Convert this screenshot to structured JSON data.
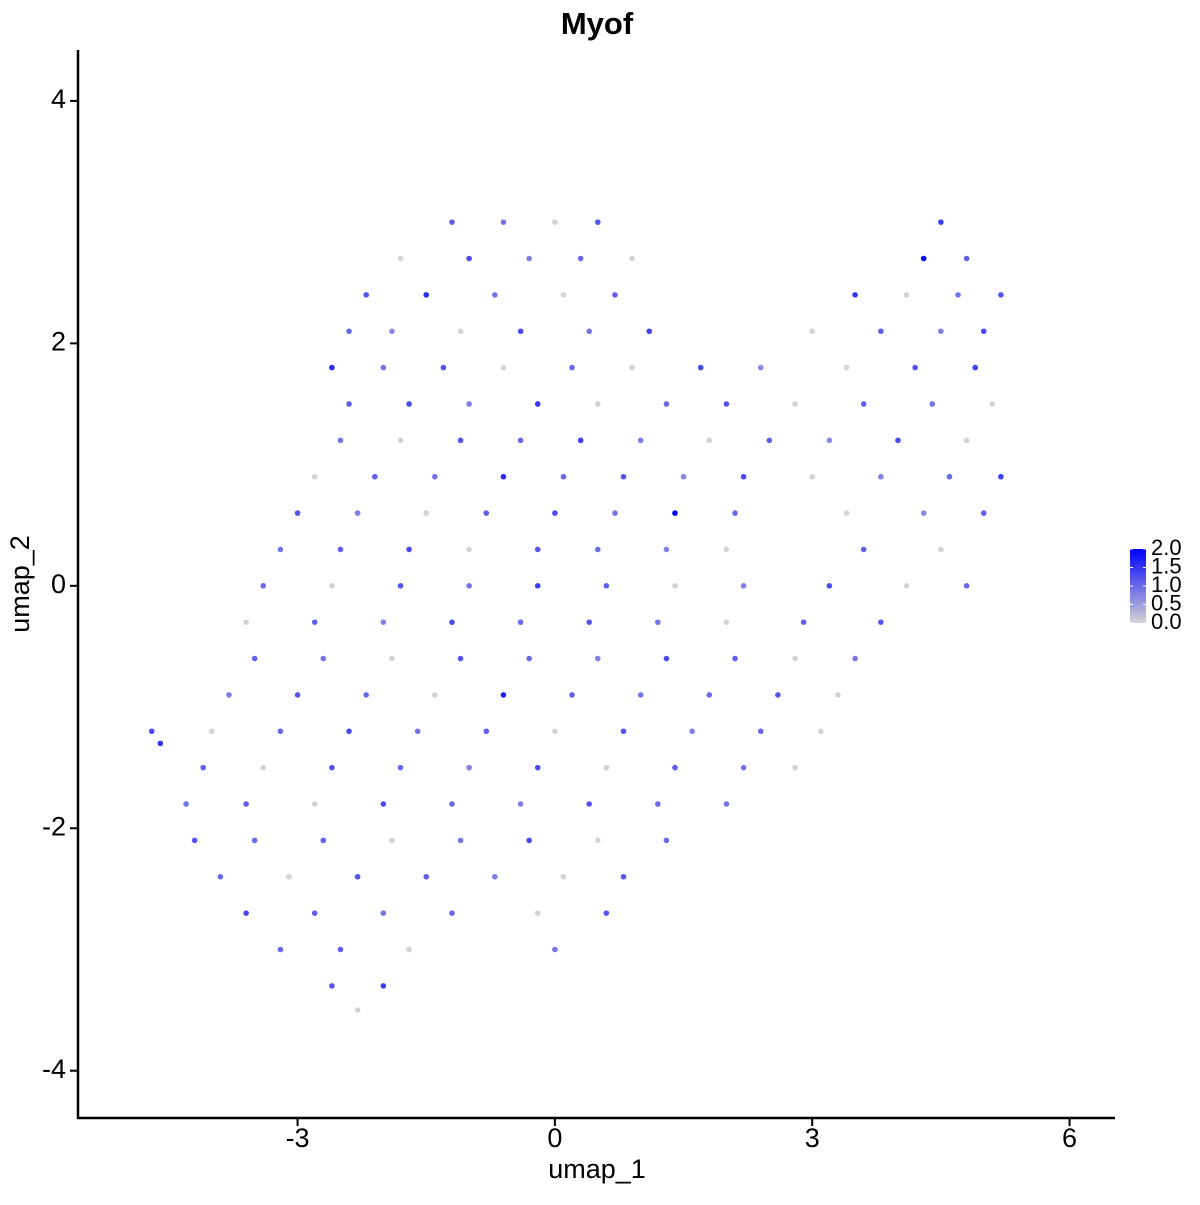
{
  "chart_data": {
    "type": "scatter",
    "title": "Myof",
    "x_label": "umap_1",
    "y_label": "umap_2",
    "xlim": [
      -5.56,
      6.53
    ],
    "ylim": [
      -4.39,
      4.42
    ],
    "xticks": [
      -3,
      0,
      3,
      6
    ],
    "yticks": [
      -4,
      -2,
      0,
      2,
      4
    ],
    "color_low": "#d3d3d3",
    "color_high": "#0000ff",
    "color_lim": [
      0,
      2
    ],
    "color_ticks": [
      {
        "value": 0,
        "label": "0.0"
      },
      {
        "value": 0.5,
        "label": "0.5"
      },
      {
        "value": 1,
        "label": "1.0"
      },
      {
        "value": 1.5,
        "label": "1.5"
      },
      {
        "value": 2,
        "label": "2.0"
      }
    ],
    "x": [
      -1.2,
      -0.6,
      0.0,
      0.5,
      4.5,
      -1.8,
      -1.0,
      -0.3,
      0.3,
      0.9,
      4.3,
      4.8,
      -2.2,
      -1.5,
      -0.7,
      0.1,
      0.7,
      3.5,
      4.1,
      4.7,
      5.2,
      -2.4,
      -1.9,
      -1.1,
      -0.4,
      0.4,
      1.1,
      3.0,
      3.8,
      4.5,
      5.0,
      -2.6,
      -2.0,
      -1.3,
      -0.6,
      0.2,
      0.9,
      1.7,
      2.4,
      3.4,
      4.2,
      4.9,
      -2.4,
      -1.7,
      -1.0,
      -0.2,
      0.5,
      1.3,
      2.0,
      2.8,
      3.6,
      4.4,
      5.1,
      -2.5,
      -1.8,
      -1.1,
      -0.4,
      0.3,
      1.0,
      1.8,
      2.5,
      3.2,
      4.0,
      4.8,
      -2.8,
      -2.1,
      -1.4,
      -0.6,
      0.1,
      0.8,
      1.5,
      2.2,
      3.0,
      3.8,
      4.6,
      5.2,
      -3.0,
      -2.3,
      -1.5,
      -0.8,
      0.0,
      0.7,
      1.4,
      2.1,
      3.4,
      4.3,
      5.0,
      -3.2,
      -2.5,
      -1.7,
      -1.0,
      -0.2,
      0.5,
      1.3,
      2.0,
      3.6,
      4.5,
      -3.4,
      -2.6,
      -1.8,
      -1.0,
      -0.2,
      0.6,
      1.4,
      2.2,
      3.2,
      4.1,
      4.8,
      -3.6,
      -2.8,
      -2.0,
      -1.2,
      -0.4,
      0.4,
      1.2,
      2.0,
      2.9,
      3.8,
      -3.5,
      -2.7,
      -1.9,
      -1.1,
      -0.3,
      0.5,
      1.3,
      2.1,
      2.8,
      3.5,
      -3.8,
      -3.0,
      -2.2,
      -1.4,
      -0.6,
      0.2,
      1.0,
      1.8,
      2.6,
      3.3,
      -4.0,
      -3.2,
      -2.4,
      -1.6,
      -0.8,
      0.0,
      0.8,
      1.6,
      2.4,
      3.1,
      -4.7,
      -4.6,
      -4.1,
      -3.4,
      -2.6,
      -1.8,
      -1.0,
      -0.2,
      0.6,
      1.4,
      2.2,
      2.8,
      -4.3,
      -3.6,
      -2.8,
      -2.0,
      -1.2,
      -0.4,
      0.4,
      1.2,
      2.0,
      -4.2,
      -3.5,
      -2.7,
      -1.9,
      -1.1,
      -0.3,
      0.5,
      1.3,
      -3.9,
      -3.1,
      -2.3,
      -1.5,
      -0.7,
      0.1,
      0.8,
      -3.6,
      -2.8,
      -2.0,
      -1.2,
      -0.2,
      0.6,
      -3.2,
      -2.5,
      -1.7,
      0.0,
      -2.6,
      -2.0,
      -2.3
    ],
    "y": [
      3.0,
      3.0,
      3.0,
      3.0,
      3.0,
      2.7,
      2.7,
      2.7,
      2.7,
      2.7,
      2.7,
      2.7,
      2.4,
      2.4,
      2.4,
      2.4,
      2.4,
      2.4,
      2.4,
      2.4,
      2.4,
      2.1,
      2.1,
      2.1,
      2.1,
      2.1,
      2.1,
      2.1,
      2.1,
      2.1,
      2.1,
      1.8,
      1.8,
      1.8,
      1.8,
      1.8,
      1.8,
      1.8,
      1.8,
      1.8,
      1.8,
      1.8,
      1.5,
      1.5,
      1.5,
      1.5,
      1.5,
      1.5,
      1.5,
      1.5,
      1.5,
      1.5,
      1.5,
      1.2,
      1.2,
      1.2,
      1.2,
      1.2,
      1.2,
      1.2,
      1.2,
      1.2,
      1.2,
      1.2,
      0.9,
      0.9,
      0.9,
      0.9,
      0.9,
      0.9,
      0.9,
      0.9,
      0.9,
      0.9,
      0.9,
      0.9,
      0.6,
      0.6,
      0.6,
      0.6,
      0.6,
      0.6,
      0.6,
      0.6,
      0.6,
      0.6,
      0.6,
      0.3,
      0.3,
      0.3,
      0.3,
      0.3,
      0.3,
      0.3,
      0.3,
      0.3,
      0.3,
      0.0,
      0.0,
      0.0,
      0.0,
      0.0,
      0.0,
      0.0,
      0.0,
      0.0,
      0.0,
      0.0,
      -0.3,
      -0.3,
      -0.3,
      -0.3,
      -0.3,
      -0.3,
      -0.3,
      -0.3,
      -0.3,
      -0.3,
      -0.6,
      -0.6,
      -0.6,
      -0.6,
      -0.6,
      -0.6,
      -0.6,
      -0.6,
      -0.6,
      -0.6,
      -0.9,
      -0.9,
      -0.9,
      -0.9,
      -0.9,
      -0.9,
      -0.9,
      -0.9,
      -0.9,
      -0.9,
      -1.2,
      -1.2,
      -1.2,
      -1.2,
      -1.2,
      -1.2,
      -1.2,
      -1.2,
      -1.2,
      -1.2,
      -1.2,
      -1.3,
      -1.5,
      -1.5,
      -1.5,
      -1.5,
      -1.5,
      -1.5,
      -1.5,
      -1.5,
      -1.5,
      -1.5,
      -1.8,
      -1.8,
      -1.8,
      -1.8,
      -1.8,
      -1.8,
      -1.8,
      -1.8,
      -1.8,
      -2.1,
      -2.1,
      -2.1,
      -2.1,
      -2.1,
      -2.1,
      -2.1,
      -2.1,
      -2.4,
      -2.4,
      -2.4,
      -2.4,
      -2.4,
      -2.4,
      -2.4,
      -2.7,
      -2.7,
      -2.7,
      -2.7,
      -2.7,
      -2.7,
      -3.0,
      -3.0,
      -3.0,
      -3.0,
      -3.3,
      -3.3,
      -3.5
    ],
    "expression": [
      1.1,
      0.9,
      0,
      1.2,
      1.4,
      0,
      1.3,
      0.8,
      1.0,
      0,
      2.0,
      1.1,
      1.2,
      1.6,
      0.9,
      0,
      1.1,
      1.5,
      0,
      0.9,
      1.2,
      1.0,
      0.7,
      0,
      1.3,
      0.9,
      1.4,
      0,
      1.1,
      0.8,
      1.3,
      1.6,
      0.9,
      1.2,
      0,
      1.0,
      0,
      1.3,
      0.7,
      0,
      1.2,
      1.4,
      1.1,
      1.3,
      0.8,
      1.5,
      0,
      1.0,
      1.2,
      0,
      1.1,
      0.9,
      0,
      0.9,
      0,
      1.2,
      1.0,
      1.4,
      0.8,
      0,
      1.1,
      0.7,
      1.3,
      0,
      0,
      1.1,
      0.9,
      1.6,
      1.0,
      1.2,
      0.7,
      1.3,
      0,
      0.8,
      1.0,
      1.4,
      1.2,
      0.8,
      0,
      1.1,
      1.3,
      0.9,
      2.0,
      1.0,
      0,
      0.7,
      1.1,
      0.9,
      1.1,
      1.3,
      0,
      1.2,
      1.0,
      0.8,
      0,
      1.1,
      0,
      1.0,
      0,
      1.2,
      0.9,
      1.4,
      1.1,
      0,
      0.8,
      1.3,
      0,
      1.0,
      0,
      1.1,
      0.8,
      1.3,
      1.0,
      1.2,
      0.9,
      0,
      1.1,
      1.2,
      1.1,
      0.9,
      0,
      1.2,
      1.0,
      0.8,
      1.3,
      1.1,
      0,
      0.9,
      0.8,
      1.2,
      1.0,
      0,
      1.7,
      1.1,
      0.9,
      1.0,
      1.2,
      0,
      0,
      1.0,
      1.3,
      0.9,
      1.1,
      0,
      1.2,
      0.8,
      1.0,
      0,
      1.3,
      1.5,
      1.1,
      0,
      1.2,
      1.0,
      0.8,
      1.3,
      0,
      1.1,
      0.9,
      0,
      0.9,
      1.1,
      0,
      1.3,
      1.0,
      0.8,
      1.2,
      1.0,
      0.9,
      1.2,
      1.0,
      1.1,
      0,
      0.9,
      1.3,
      0,
      1.0,
      1.0,
      0,
      1.2,
      1.1,
      0.8,
      0,
      1.2,
      1.3,
      1.1,
      0.9,
      1.0,
      0,
      1.2,
      1.0,
      1.1,
      0,
      0.9,
      1.2,
      1.4,
      0
    ]
  }
}
